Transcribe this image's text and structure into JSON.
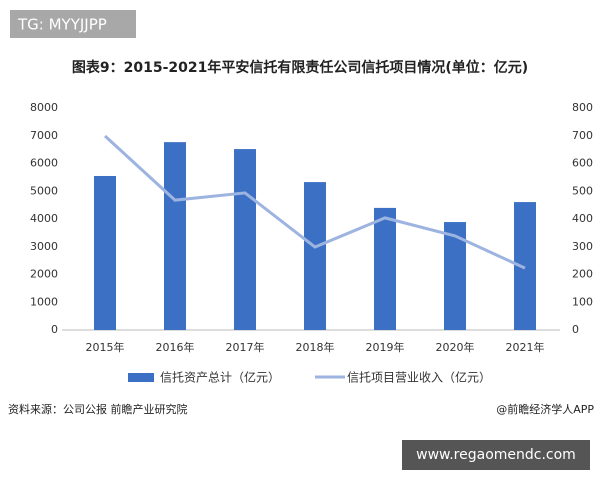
{
  "header": {
    "tag": "TG: MYYJJPP"
  },
  "chart_data": {
    "type": "bar-line",
    "title": "图表9：2015-2021年平安信托有限责任公司信托项目情况(单位：亿元)",
    "categories": [
      "2015年",
      "2016年",
      "2017年",
      "2018年",
      "2019年",
      "2020年",
      "2021年"
    ],
    "series": [
      {
        "name": "信托资产总计（亿元）",
        "color": "#3b70c4",
        "type": "bar",
        "values": [
          5550,
          6770,
          6520,
          5330,
          4400,
          3890,
          4610
        ]
      },
      {
        "name": "信托项目营业收入（亿元）",
        "color": "#9db3e0",
        "type": "line",
        "axis": "y2",
        "values": [
          699,
          468,
          494,
          299,
          404,
          339,
          223
        ]
      }
    ],
    "ylim": [
      0,
      8000
    ],
    "yticks": [
      0,
      1000,
      2000,
      3000,
      4000,
      5000,
      6000,
      7000,
      8000
    ],
    "y2lim": [
      0,
      800
    ],
    "y2ticks": [
      0,
      100,
      200,
      300,
      400,
      500,
      600,
      700,
      800
    ],
    "grid": false,
    "legend": "bottom"
  },
  "footer": {
    "source": "资料来源：公司公报 前瞻产业研究院",
    "credit": "@前瞻经济学人APP",
    "url": "www.regaomendc.com"
  }
}
